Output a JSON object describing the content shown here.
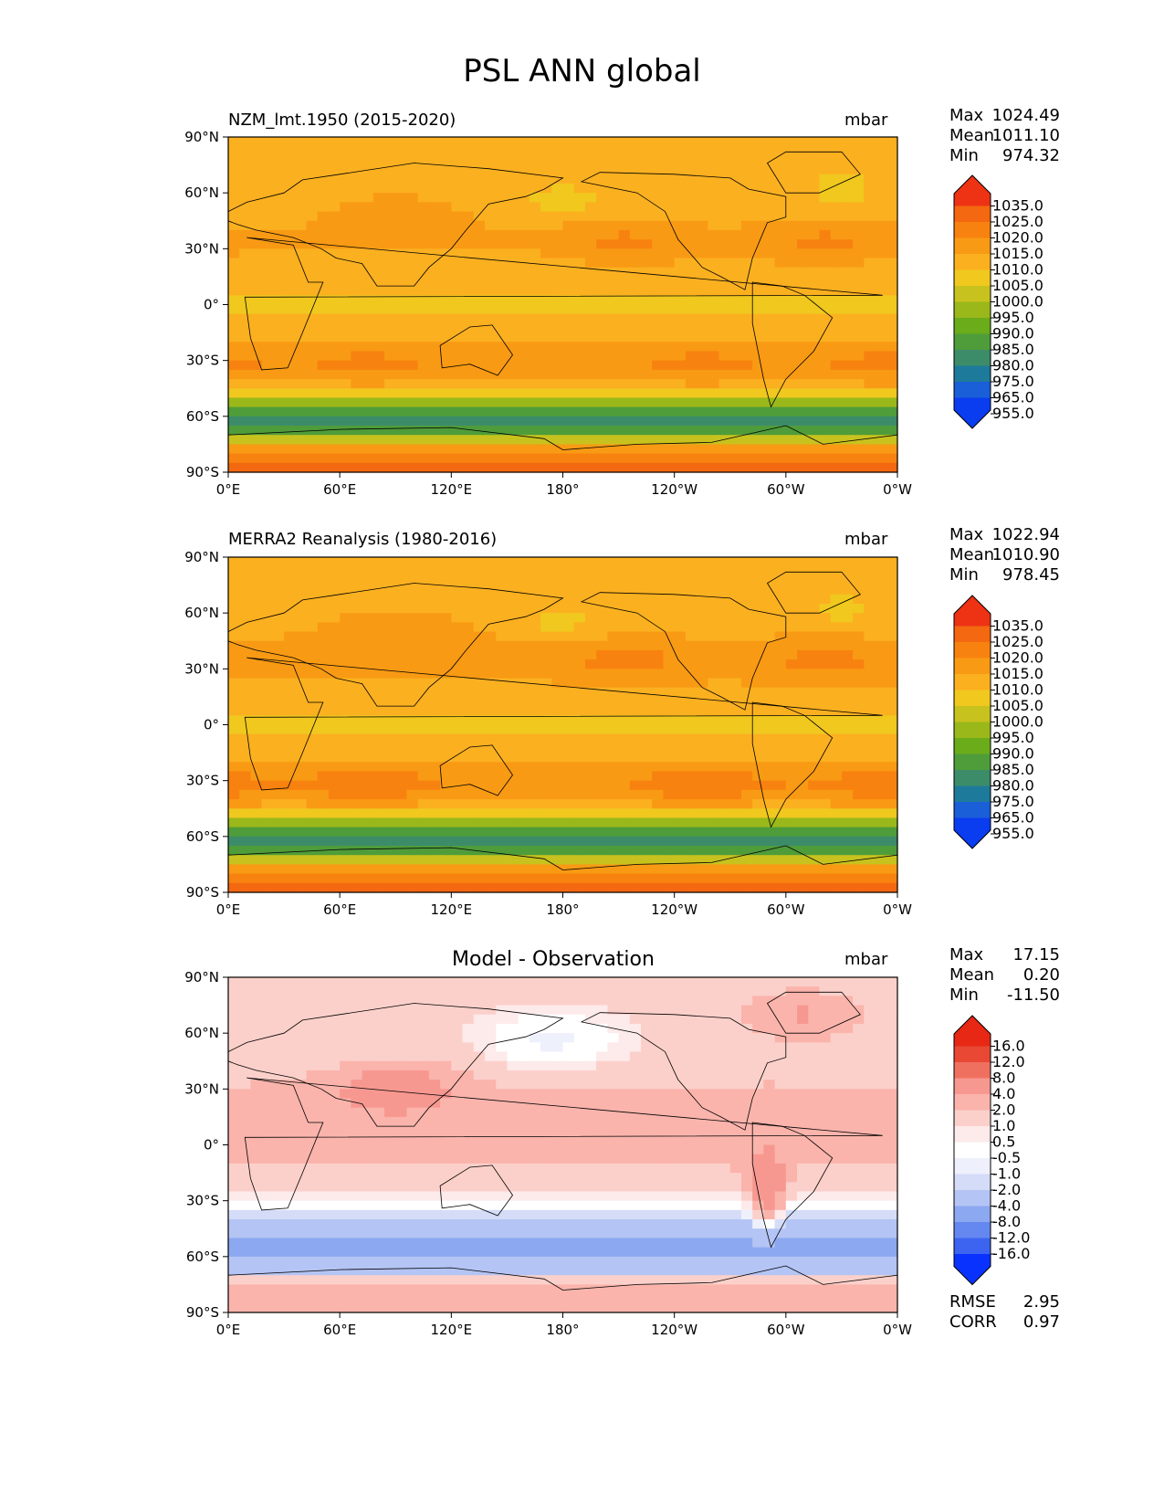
{
  "figure_title": "PSL ANN global",
  "colors": {
    "abs_ramp": [
      "#0a3cf0",
      "#1a5fd8",
      "#1e7a9a",
      "#3c8c6a",
      "#4f9c3a",
      "#6aac1a",
      "#9ab81a",
      "#c8c21e",
      "#f0c81e",
      "#fbb020",
      "#f99a14",
      "#f8820f",
      "#f36810",
      "#ee3214"
    ],
    "diff_ramp": [
      "#0a32ff",
      "#3c64f0",
      "#6488f0",
      "#8ca8f0",
      "#b4c4f4",
      "#d4dcf8",
      "#eef0fc",
      "#ffffff",
      "#fdeaea",
      "#fcd0ca",
      "#fab4ac",
      "#f79890",
      "#f07060",
      "#e84834",
      "#e62814"
    ]
  },
  "chart_data": [
    {
      "type": "heatmap",
      "name": "model",
      "title": "NZM_lmt.1950 (2015-2020)",
      "units": "mbar",
      "stats": {
        "max_label": "Max",
        "max": "1024.49",
        "mean_label": "Mean",
        "mean": "1011.10",
        "min_label": "Min",
        "min": "974.32"
      },
      "colorbar_levels": [
        "1035.0",
        "1025.0",
        "1020.0",
        "1015.0",
        "1010.0",
        "1005.0",
        "1000.0",
        "995.0",
        "990.0",
        "985.0",
        "980.0",
        "975.0",
        "965.0",
        "955.0"
      ],
      "x_ticks": [
        "0°E",
        "60°E",
        "120°E",
        "180°",
        "120°W",
        "60°W",
        "0°W"
      ],
      "y_ticks": [
        "90°N",
        "60°N",
        "30°N",
        "0°",
        "30°S",
        "60°S",
        "90°S"
      ],
      "xlim": [
        0,
        360
      ],
      "ylim": [
        -90,
        90
      ]
    },
    {
      "type": "heatmap",
      "name": "obs",
      "title": "MERRA2 Reanalysis (1980-2016)",
      "units": "mbar",
      "stats": {
        "max_label": "Max",
        "max": "1022.94",
        "mean_label": "Mean",
        "mean": "1010.90",
        "min_label": "Min",
        "min": "978.45"
      },
      "colorbar_levels": [
        "1035.0",
        "1025.0",
        "1020.0",
        "1015.0",
        "1010.0",
        "1005.0",
        "1000.0",
        "995.0",
        "990.0",
        "985.0",
        "980.0",
        "975.0",
        "965.0",
        "955.0"
      ],
      "x_ticks": [
        "0°E",
        "60°E",
        "120°E",
        "180°",
        "120°W",
        "60°W",
        "0°W"
      ],
      "y_ticks": [
        "90°N",
        "60°N",
        "30°N",
        "0°",
        "30°S",
        "60°S",
        "90°S"
      ],
      "xlim": [
        0,
        360
      ],
      "ylim": [
        -90,
        90
      ]
    },
    {
      "type": "heatmap",
      "name": "diff",
      "title": "Model - Observation",
      "units": "mbar",
      "stats": {
        "max_label": "Max",
        "max": "17.15",
        "mean_label": "Mean",
        "mean": "0.20",
        "min_label": "Min",
        "min": "-11.50"
      },
      "colorbar_levels": [
        "16.0",
        "12.0",
        "8.0",
        "4.0",
        "2.0",
        "1.0",
        "0.5",
        "-0.5",
        "-1.0",
        "-2.0",
        "-4.0",
        "-8.0",
        "-12.0",
        "-16.0"
      ],
      "x_ticks": [
        "0°E",
        "60°E",
        "120°E",
        "180°",
        "120°W",
        "60°W",
        "0°W"
      ],
      "y_ticks": [
        "90°N",
        "60°N",
        "30°N",
        "0°",
        "30°S",
        "60°S",
        "90°S"
      ],
      "xlim": [
        0,
        360
      ],
      "ylim": [
        -90,
        90
      ],
      "rmse_label": "RMSE",
      "rmse": "2.95",
      "corr_label": "CORR",
      "corr": "0.97"
    }
  ]
}
